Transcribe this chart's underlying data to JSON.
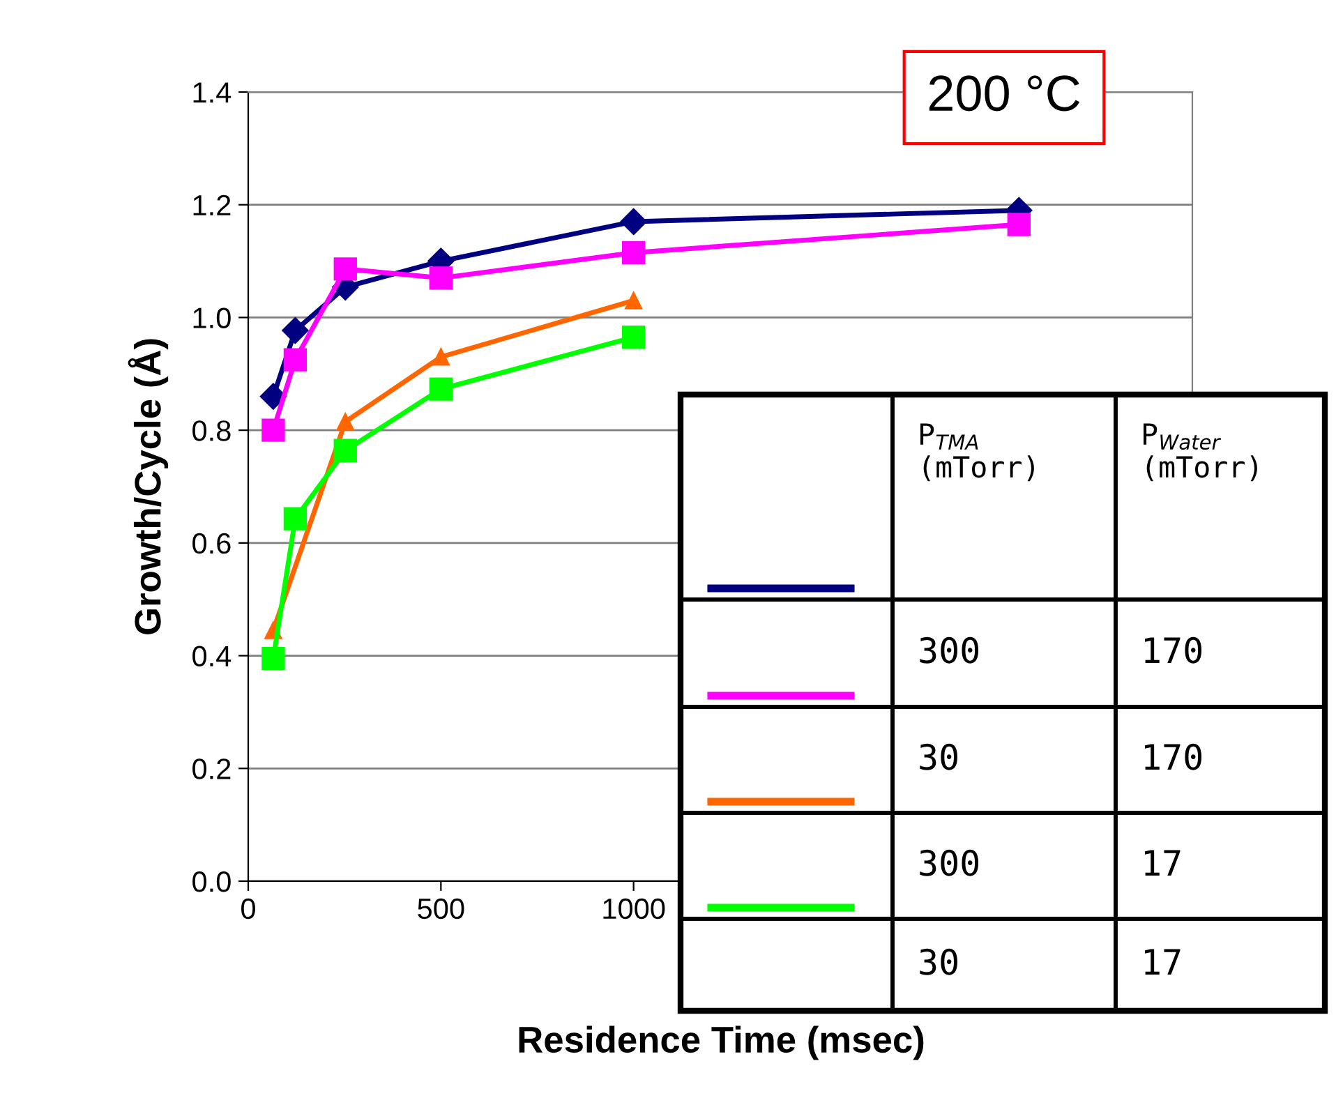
{
  "chart_data": {
    "type": "line",
    "xlabel": "Residence Time (msec)",
    "ylabel": "Growth/Cycle (Å)",
    "xlim": [
      0,
      2450
    ],
    "xticks": [
      0,
      500,
      1000
    ],
    "ylim": [
      0,
      1.4
    ],
    "yticks": [
      {
        "value": 0,
        "label": "0.0"
      },
      0.2,
      0.4,
      0.6,
      0.8,
      {
        "value": 1.0,
        "label": "1.0"
      },
      1.2,
      1.4
    ],
    "grid": "y",
    "legend": false,
    "series": [
      {
        "color": "#000080",
        "marker": "diamond",
        "x": [
          65,
          122,
          252,
          500,
          1000,
          2000
        ],
        "values": [
          0.86,
          0.977,
          1.054,
          1.1,
          1.17,
          1.19
        ]
      },
      {
        "color": "#ff00ff",
        "marker": "square",
        "x": [
          65,
          122,
          252,
          500,
          1000,
          2000
        ],
        "values": [
          0.8,
          0.925,
          1.086,
          1.07,
          1.115,
          1.165
        ]
      },
      {
        "color": "#ff6600",
        "marker": "triangle",
        "x": [
          65,
          252,
          500,
          1000
        ],
        "values": [
          0.445,
          0.815,
          0.93,
          1.03
        ]
      },
      {
        "color": "#00ff00",
        "marker": "square",
        "x": [
          65,
          122,
          252,
          500,
          1000
        ],
        "values": [
          0.395,
          0.643,
          0.764,
          0.873,
          0.965
        ]
      }
    ],
    "annotations": [
      "200 °C",
      "P$_{TMA}$\n(mTorr)",
      "P$_{Water}$\n(mTorr)",
      "300",
      "170",
      "30",
      "170",
      "300",
      "17",
      "30",
      "17"
    ]
  }
}
